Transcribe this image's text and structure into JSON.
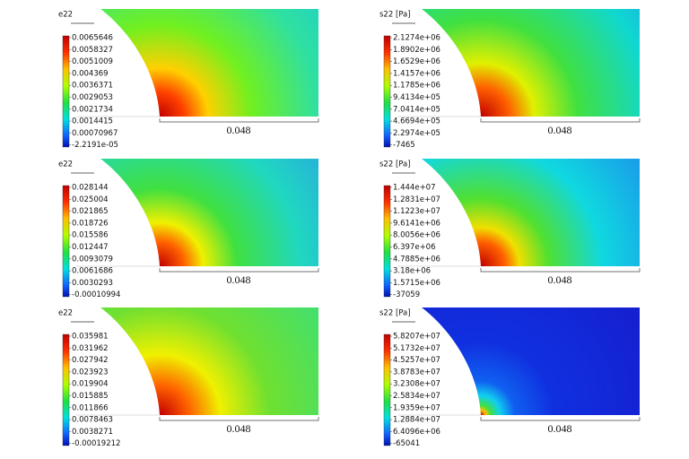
{
  "panels": [
    {
      "title": "e22",
      "legend": [
        "0.0065646",
        "0.0058327",
        "0.0051009",
        "0.004369",
        "0.0036371",
        "0.0029053",
        "0.0021734",
        "0.0014415",
        "0.00070967",
        "-2.2191e-05"
      ],
      "scale": "0.048"
    },
    {
      "title": "s22 [Pa]",
      "legend": [
        "2.1274e+06",
        "1.8902e+06",
        "1.6529e+06",
        "1.4157e+06",
        "1.1785e+06",
        "9.4134e+05",
        "7.0414e+05",
        "4.6694e+05",
        "2.2974e+05",
        "-7465"
      ],
      "scale": "0.048"
    },
    {
      "title": "e22",
      "legend": [
        "0.028144",
        "0.025004",
        "0.021865",
        "0.018726",
        "0.015586",
        "0.012447",
        "0.0093079",
        "0.0061686",
        "0.0030293",
        "-0.00010994"
      ],
      "scale": "0.048"
    },
    {
      "title": "s22 [Pa]",
      "legend": [
        "1.444e+07",
        "1.2831e+07",
        "1.1223e+07",
        "9.6141e+06",
        "8.0056e+06",
        "6.397e+06",
        "4.7885e+06",
        "3.18e+06",
        "1.5715e+06",
        "-37059"
      ],
      "scale": "0.048"
    },
    {
      "title": "e22",
      "legend": [
        "0.035981",
        "0.031962",
        "0.027942",
        "0.023923",
        "0.019904",
        "0.015885",
        "0.011866",
        "0.0078463",
        "0.0038271",
        "-0.00019212"
      ],
      "scale": "0.048"
    },
    {
      "title": "s22 [Pa]",
      "legend": [
        "5.8207e+07",
        "5.1732e+07",
        "4.5257e+07",
        "3.8783e+07",
        "3.2308e+07",
        "2.5834e+07",
        "1.9359e+07",
        "1.2884e+07",
        "6.4096e+06",
        "-65041"
      ],
      "scale": "0.048"
    }
  ]
}
